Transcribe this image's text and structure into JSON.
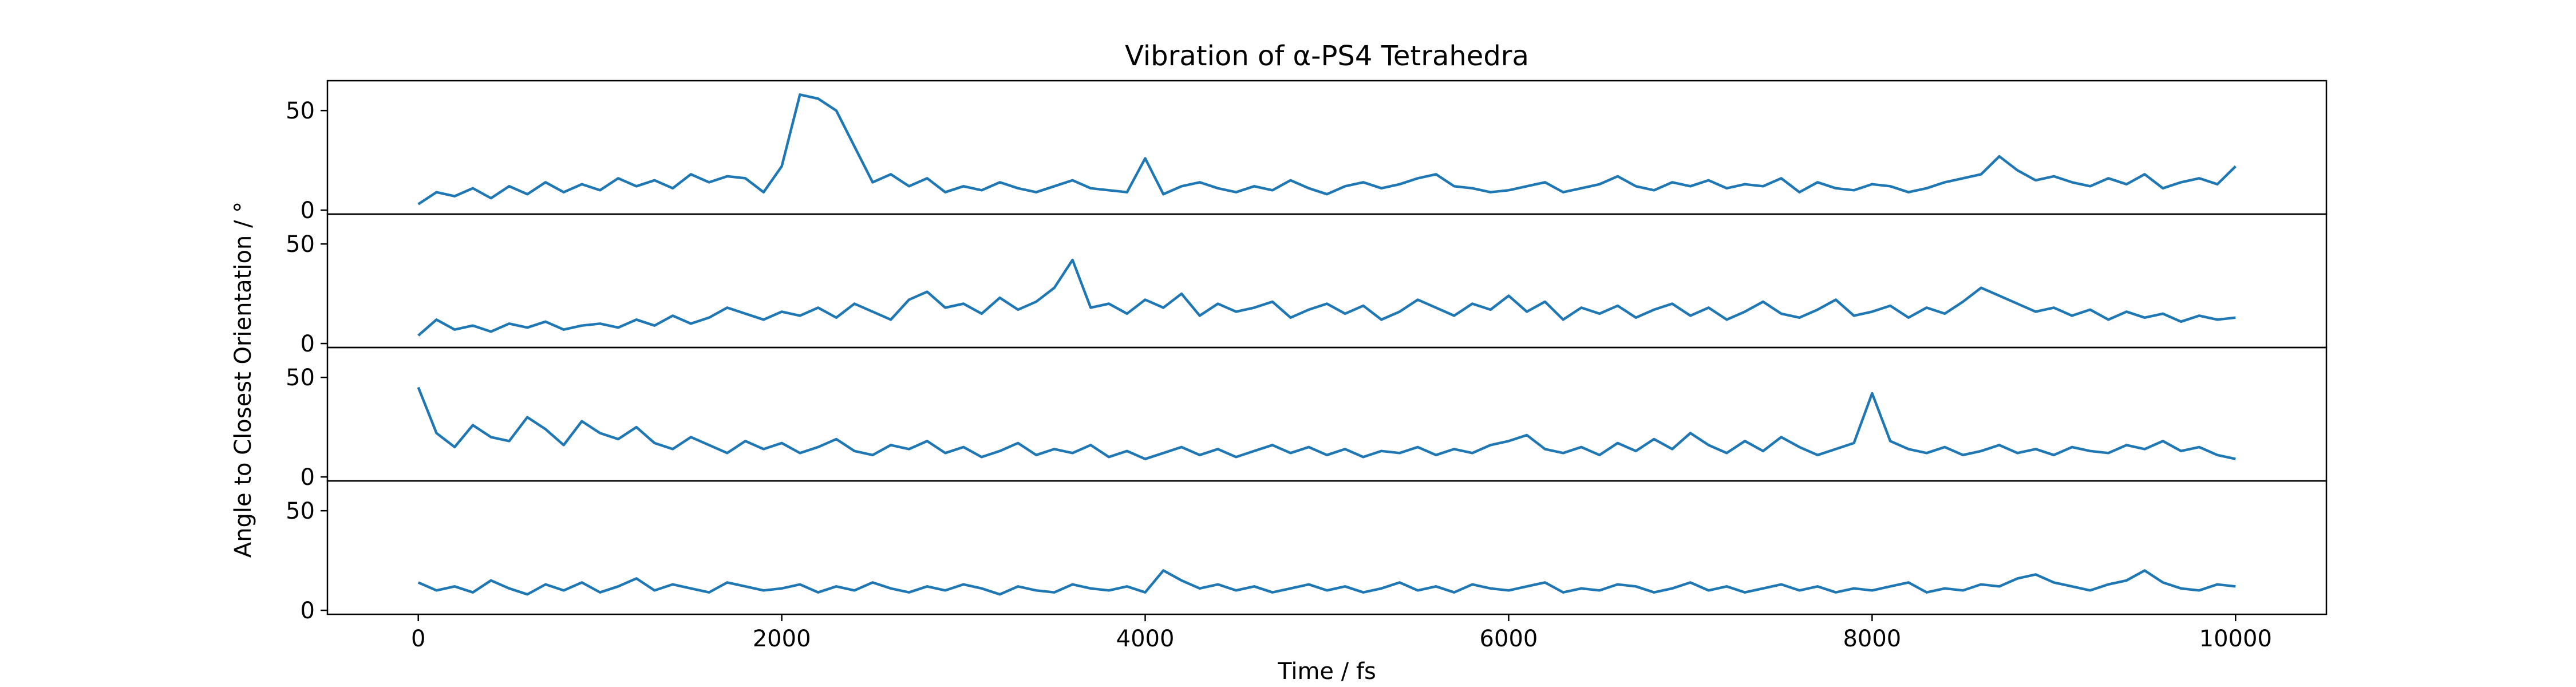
{
  "title": "Vibration of α-PS4 Tetrahedra",
  "xlabel": "Time / fs",
  "ylabel": "Angle to Closest Orientation / °",
  "line_color": "#1f77b4",
  "x_ticks": [
    "0",
    "2000",
    "4000",
    "6000",
    "8000",
    "10000"
  ],
  "y_ticks": [
    "0",
    "50"
  ],
  "chart_data": [
    {
      "type": "line",
      "xlim": [
        -500,
        10500
      ],
      "ylim": [
        -2,
        65
      ],
      "x": [
        0,
        100,
        200,
        300,
        400,
        500,
        600,
        700,
        800,
        900,
        1000,
        1100,
        1200,
        1300,
        1400,
        1500,
        1600,
        1700,
        1800,
        1900,
        2000,
        2100,
        2200,
        2300,
        2400,
        2500,
        2600,
        2700,
        2800,
        2900,
        3000,
        3100,
        3200,
        3300,
        3400,
        3500,
        3600,
        3700,
        3800,
        3900,
        4000,
        4100,
        4200,
        4300,
        4400,
        4500,
        4600,
        4700,
        4800,
        4900,
        5000,
        5100,
        5200,
        5300,
        5400,
        5500,
        5600,
        5700,
        5800,
        5900,
        6000,
        6100,
        6200,
        6300,
        6400,
        6500,
        6600,
        6700,
        6800,
        6900,
        7000,
        7100,
        7200,
        7300,
        7400,
        7500,
        7600,
        7700,
        7800,
        7900,
        8000,
        8100,
        8200,
        8300,
        8400,
        8500,
        8600,
        8700,
        8800,
        8900,
        9000,
        9100,
        9200,
        9300,
        9400,
        9500,
        9600,
        9700,
        9800,
        9900,
        10000
      ],
      "y": [
        3,
        9,
        7,
        11,
        6,
        12,
        8,
        14,
        9,
        13,
        10,
        16,
        12,
        15,
        11,
        18,
        14,
        17,
        16,
        9,
        22,
        58,
        56,
        50,
        32,
        14,
        18,
        12,
        16,
        9,
        12,
        10,
        14,
        11,
        9,
        12,
        15,
        11,
        10,
        9,
        26,
        8,
        12,
        14,
        11,
        9,
        12,
        10,
        15,
        11,
        8,
        12,
        14,
        11,
        13,
        16,
        18,
        12,
        11,
        9,
        10,
        12,
        14,
        9,
        11,
        13,
        17,
        12,
        10,
        14,
        12,
        15,
        11,
        13,
        12,
        16,
        9,
        14,
        11,
        10,
        13,
        12,
        9,
        11,
        14,
        16,
        18,
        27,
        20,
        15,
        17,
        14,
        12,
        16,
        13,
        18,
        11,
        14,
        16,
        13,
        22
      ]
    },
    {
      "type": "line",
      "xlim": [
        -500,
        10500
      ],
      "ylim": [
        -2,
        65
      ],
      "x": [
        0,
        100,
        200,
        300,
        400,
        500,
        600,
        700,
        800,
        900,
        1000,
        1100,
        1200,
        1300,
        1400,
        1500,
        1600,
        1700,
        1800,
        1900,
        2000,
        2100,
        2200,
        2300,
        2400,
        2500,
        2600,
        2700,
        2800,
        2900,
        3000,
        3100,
        3200,
        3300,
        3400,
        3500,
        3600,
        3700,
        3800,
        3900,
        4000,
        4100,
        4200,
        4300,
        4400,
        4500,
        4600,
        4700,
        4800,
        4900,
        5000,
        5100,
        5200,
        5300,
        5400,
        5500,
        5600,
        5700,
        5800,
        5900,
        6000,
        6100,
        6200,
        6300,
        6400,
        6500,
        6600,
        6700,
        6800,
        6900,
        7000,
        7100,
        7200,
        7300,
        7400,
        7500,
        7600,
        7700,
        7800,
        7900,
        8000,
        8100,
        8200,
        8300,
        8400,
        8500,
        8600,
        8700,
        8800,
        8900,
        9000,
        9100,
        9200,
        9300,
        9400,
        9500,
        9600,
        9700,
        9800,
        9900,
        10000
      ],
      "y": [
        4,
        12,
        7,
        9,
        6,
        10,
        8,
        11,
        7,
        9,
        10,
        8,
        12,
        9,
        14,
        10,
        13,
        18,
        15,
        12,
        16,
        14,
        18,
        13,
        20,
        16,
        12,
        22,
        26,
        18,
        20,
        15,
        23,
        17,
        21,
        28,
        42,
        18,
        20,
        15,
        22,
        18,
        25,
        14,
        20,
        16,
        18,
        21,
        13,
        17,
        20,
        15,
        19,
        12,
        16,
        22,
        18,
        14,
        20,
        17,
        24,
        16,
        21,
        12,
        18,
        15,
        19,
        13,
        17,
        20,
        14,
        18,
        12,
        16,
        21,
        15,
        13,
        17,
        22,
        14,
        16,
        19,
        13,
        18,
        15,
        21,
        28,
        24,
        20,
        16,
        18,
        14,
        17,
        12,
        16,
        13,
        15,
        11,
        14,
        12,
        13
      ]
    },
    {
      "type": "line",
      "xlim": [
        -500,
        10500
      ],
      "ylim": [
        -2,
        65
      ],
      "x": [
        0,
        100,
        200,
        300,
        400,
        500,
        600,
        700,
        800,
        900,
        1000,
        1100,
        1200,
        1300,
        1400,
        1500,
        1600,
        1700,
        1800,
        1900,
        2000,
        2100,
        2200,
        2300,
        2400,
        2500,
        2600,
        2700,
        2800,
        2900,
        3000,
        3100,
        3200,
        3300,
        3400,
        3500,
        3600,
        3700,
        3800,
        3900,
        4000,
        4100,
        4200,
        4300,
        4400,
        4500,
        4600,
        4700,
        4800,
        4900,
        5000,
        5100,
        5200,
        5300,
        5400,
        5500,
        5600,
        5700,
        5800,
        5900,
        6000,
        6100,
        6200,
        6300,
        6400,
        6500,
        6600,
        6700,
        6800,
        6900,
        7000,
        7100,
        7200,
        7300,
        7400,
        7500,
        7600,
        7700,
        7800,
        7900,
        8000,
        8100,
        8200,
        8300,
        8400,
        8500,
        8600,
        8700,
        8800,
        8900,
        9000,
        9100,
        9200,
        9300,
        9400,
        9500,
        9600,
        9700,
        9800,
        9900,
        10000
      ],
      "y": [
        45,
        22,
        15,
        26,
        20,
        18,
        30,
        24,
        16,
        28,
        22,
        19,
        25,
        17,
        14,
        20,
        16,
        12,
        18,
        14,
        17,
        12,
        15,
        19,
        13,
        11,
        16,
        14,
        18,
        12,
        15,
        10,
        13,
        17,
        11,
        14,
        12,
        16,
        10,
        13,
        9,
        12,
        15,
        11,
        14,
        10,
        13,
        16,
        12,
        15,
        11,
        14,
        10,
        13,
        12,
        15,
        11,
        14,
        12,
        16,
        18,
        21,
        14,
        12,
        15,
        11,
        17,
        13,
        19,
        14,
        22,
        16,
        12,
        18,
        13,
        20,
        15,
        11,
        14,
        17,
        42,
        18,
        14,
        12,
        15,
        11,
        13,
        16,
        12,
        14,
        11,
        15,
        13,
        12,
        16,
        14,
        18,
        13,
        15,
        11,
        9
      ]
    },
    {
      "type": "line",
      "xlim": [
        -500,
        10500
      ],
      "ylim": [
        -2,
        65
      ],
      "x": [
        0,
        100,
        200,
        300,
        400,
        500,
        600,
        700,
        800,
        900,
        1000,
        1100,
        1200,
        1300,
        1400,
        1500,
        1600,
        1700,
        1800,
        1900,
        2000,
        2100,
        2200,
        2300,
        2400,
        2500,
        2600,
        2700,
        2800,
        2900,
        3000,
        3100,
        3200,
        3300,
        3400,
        3500,
        3600,
        3700,
        3800,
        3900,
        4000,
        4100,
        4200,
        4300,
        4400,
        4500,
        4600,
        4700,
        4800,
        4900,
        5000,
        5100,
        5200,
        5300,
        5400,
        5500,
        5600,
        5700,
        5800,
        5900,
        6000,
        6100,
        6200,
        6300,
        6400,
        6500,
        6600,
        6700,
        6800,
        6900,
        7000,
        7100,
        7200,
        7300,
        7400,
        7500,
        7600,
        7700,
        7800,
        7900,
        8000,
        8100,
        8200,
        8300,
        8400,
        8500,
        8600,
        8700,
        8800,
        8900,
        9000,
        9100,
        9200,
        9300,
        9400,
        9500,
        9600,
        9700,
        9800,
        9900,
        10000
      ],
      "y": [
        14,
        10,
        12,
        9,
        15,
        11,
        8,
        13,
        10,
        14,
        9,
        12,
        16,
        10,
        13,
        11,
        9,
        14,
        12,
        10,
        11,
        13,
        9,
        12,
        10,
        14,
        11,
        9,
        12,
        10,
        13,
        11,
        8,
        12,
        10,
        9,
        13,
        11,
        10,
        12,
        9,
        20,
        15,
        11,
        13,
        10,
        12,
        9,
        11,
        13,
        10,
        12,
        9,
        11,
        14,
        10,
        12,
        9,
        13,
        11,
        10,
        12,
        14,
        9,
        11,
        10,
        13,
        12,
        9,
        11,
        14,
        10,
        12,
        9,
        11,
        13,
        10,
        12,
        9,
        11,
        10,
        12,
        14,
        9,
        11,
        10,
        13,
        12,
        16,
        18,
        14,
        12,
        10,
        13,
        15,
        20,
        14,
        11,
        10,
        13,
        12
      ]
    }
  ]
}
